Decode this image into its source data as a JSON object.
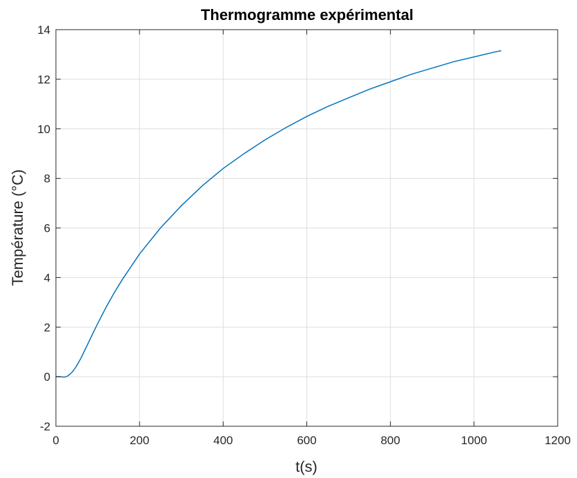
{
  "chart_data": {
    "type": "line",
    "title": "Thermogramme expérimental",
    "xlabel": "t(s)",
    "ylabel": "Température (°C)",
    "xlim": [
      0,
      1200
    ],
    "ylim": [
      -2,
      14
    ],
    "xticks": [
      0,
      200,
      400,
      600,
      800,
      1000,
      1200
    ],
    "yticks": [
      -2,
      0,
      2,
      4,
      6,
      8,
      10,
      12,
      14
    ],
    "grid": true,
    "line_color": "#0072bd",
    "series": [
      {
        "x": [
          0,
          10,
          20,
          25,
          30,
          40,
          50,
          60,
          70,
          80,
          90,
          100,
          120,
          140,
          160,
          180,
          200,
          250,
          300,
          350,
          400,
          450,
          500,
          550,
          600,
          650,
          700,
          750,
          800,
          850,
          900,
          950,
          1000,
          1050,
          1065
        ],
        "values": [
          0.0,
          0.0,
          -0.02,
          0.0,
          0.05,
          0.2,
          0.45,
          0.75,
          1.1,
          1.45,
          1.8,
          2.15,
          2.8,
          3.4,
          3.95,
          4.45,
          4.95,
          6.0,
          6.9,
          7.7,
          8.4,
          9.0,
          9.55,
          10.05,
          10.5,
          10.9,
          11.25,
          11.6,
          11.9,
          12.2,
          12.45,
          12.7,
          12.9,
          13.1,
          13.15
        ]
      }
    ]
  }
}
